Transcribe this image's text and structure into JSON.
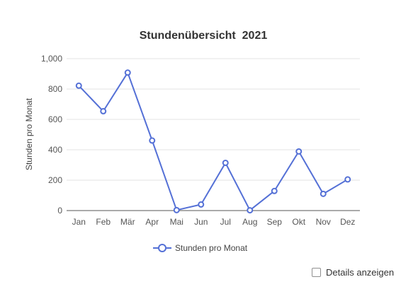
{
  "chart_data": {
    "type": "line",
    "title": "Stundenübersicht  2021",
    "xlabel": "",
    "ylabel": "Stunden pro Monat",
    "categories": [
      "Jan",
      "Feb",
      "Mär",
      "Apr",
      "Mai",
      "Jun",
      "Jul",
      "Aug",
      "Sep",
      "Okt",
      "Nov",
      "Dez"
    ],
    "series": [
      {
        "name": "Stunden pro Monat",
        "values": [
          822,
          654,
          908,
          461,
          3,
          40,
          314,
          2,
          129,
          389,
          110,
          205
        ],
        "color": "#5470d6"
      }
    ],
    "ylim": [
      0,
      1000
    ],
    "yticks": [
      0,
      200,
      400,
      600,
      800,
      1000
    ],
    "ytick_labels": [
      "0",
      "200",
      "400",
      "600",
      "800",
      "1,000"
    ],
    "grid": true,
    "legend_position": "bottom-center",
    "marker": "hollow-circle"
  },
  "controls": {
    "details_label": "Details anzeigen",
    "details_checked": false
  }
}
